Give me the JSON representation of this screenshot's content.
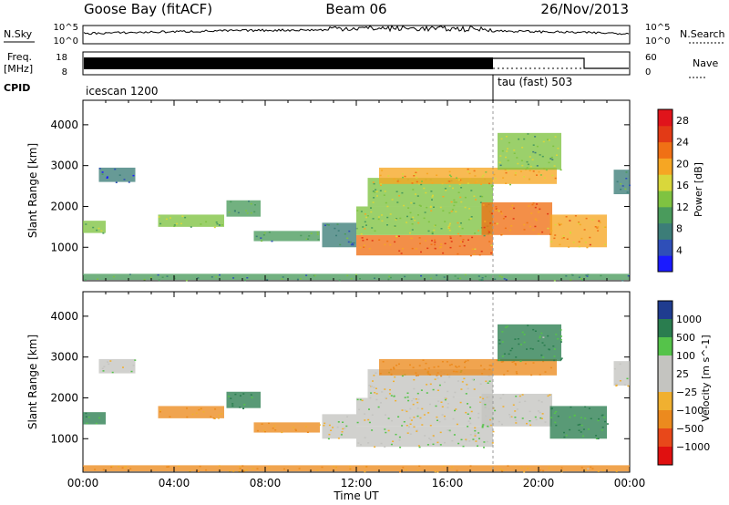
{
  "header": {
    "station": "Goose Bay (fitACF)",
    "beam": "Beam 06",
    "date": "26/Nov/2013"
  },
  "noise_panel": {
    "left_label": "N.Sky",
    "right_label": "N.Search",
    "left_ticks": [
      "10^5",
      "10^0"
    ],
    "right_ticks": [
      "10^5",
      "10^0"
    ]
  },
  "freq_panel": {
    "left_label_line1": "Freq.",
    "left_label_line2": "[MHz]",
    "right_label": "Nave",
    "left_ticks": [
      "18",
      "8"
    ],
    "right_ticks": [
      "60",
      "0"
    ]
  },
  "cpid_panel": {
    "label": "CPID",
    "segments": [
      {
        "name": "icescan 1200",
        "start_hour": 0,
        "end_hour": 18
      },
      {
        "name": "tau (fast) 503",
        "start_hour": 18,
        "end_hour": 24
      }
    ]
  },
  "x_axis": {
    "label": "Time UT",
    "ticks": [
      "00:00",
      "04:00",
      "08:00",
      "12:00",
      "16:00",
      "20:00",
      "00:00"
    ],
    "range_hours": [
      0,
      24
    ]
  },
  "chart_data": [
    {
      "type": "heatmap",
      "parameter": "power",
      "ylabel": "Slant Range [km]",
      "yticks": [
        1000,
        2000,
        3000,
        4000
      ],
      "ylim": [
        180,
        4600
      ],
      "colorbar": {
        "label": "Power [dB]",
        "ticks": [
          "4",
          "8",
          "12",
          "16",
          "20",
          "24",
          "28"
        ],
        "range": [
          0,
          30
        ]
      },
      "regions": [
        {
          "t0": 0.0,
          "t1": 24.0,
          "r0": 200,
          "r1": 350,
          "value": 10
        },
        {
          "t0": 0.7,
          "t1": 2.3,
          "r0": 2600,
          "r1": 2950,
          "value": 6
        },
        {
          "t0": 0.0,
          "t1": 1.0,
          "r0": 1350,
          "r1": 1650,
          "value": 12
        },
        {
          "t0": 3.3,
          "t1": 6.2,
          "r0": 1500,
          "r1": 1800,
          "value": 12
        },
        {
          "t0": 6.3,
          "t1": 7.8,
          "r0": 1750,
          "r1": 2150,
          "value": 10
        },
        {
          "t0": 7.5,
          "t1": 10.4,
          "r0": 1150,
          "r1": 1400,
          "value": 10
        },
        {
          "t0": 10.5,
          "t1": 12.0,
          "r0": 1000,
          "r1": 1600,
          "value": 8
        },
        {
          "t0": 12.0,
          "t1": 18.0,
          "r0": 800,
          "r1": 1300,
          "value": 22
        },
        {
          "t0": 12.0,
          "t1": 18.0,
          "r0": 1300,
          "r1": 2000,
          "value": 14
        },
        {
          "t0": 12.5,
          "t1": 18.0,
          "r0": 2000,
          "r1": 2700,
          "value": 14
        },
        {
          "t0": 13.0,
          "t1": 20.8,
          "r0": 2550,
          "r1": 2950,
          "value": 18
        },
        {
          "t0": 17.5,
          "t1": 20.6,
          "r0": 1300,
          "r1": 2100,
          "value": 22
        },
        {
          "t0": 20.5,
          "t1": 23.0,
          "r0": 1000,
          "r1": 1800,
          "value": 20
        },
        {
          "t0": 18.2,
          "t1": 21.0,
          "r0": 2900,
          "r1": 3800,
          "value": 12
        },
        {
          "t0": 23.3,
          "t1": 24.0,
          "r0": 2300,
          "r1": 2900,
          "value": 8
        }
      ]
    },
    {
      "type": "heatmap",
      "parameter": "velocity",
      "ylabel": "Slant Range [km]",
      "yticks": [
        1000,
        2000,
        3000,
        4000
      ],
      "ylim": [
        180,
        4600
      ],
      "colorbar": {
        "label": "Velocity [m s^-1]",
        "ticks": [
          "1000",
          "500",
          "100",
          "25",
          "−25",
          "−100",
          "−500",
          "−1000"
        ]
      },
      "regions": [
        {
          "t0": 0.0,
          "t1": 24.0,
          "r0": 200,
          "r1": 350,
          "value": -100
        },
        {
          "t0": 0.7,
          "t1": 2.3,
          "r0": 2600,
          "r1": 2950,
          "value": 0
        },
        {
          "t0": 0.0,
          "t1": 1.0,
          "r0": 1350,
          "r1": 1650,
          "value": 100
        },
        {
          "t0": 3.3,
          "t1": 6.2,
          "r0": 1500,
          "r1": 1800,
          "value": -100
        },
        {
          "t0": 6.3,
          "t1": 7.8,
          "r0": 1750,
          "r1": 2150,
          "value": 100
        },
        {
          "t0": 7.5,
          "t1": 10.4,
          "r0": 1150,
          "r1": 1400,
          "value": -100
        },
        {
          "t0": 10.5,
          "t1": 12.0,
          "r0": 1000,
          "r1": 1600,
          "value": 0
        },
        {
          "t0": 12.0,
          "t1": 18.0,
          "r0": 800,
          "r1": 1300,
          "value": 0
        },
        {
          "t0": 12.0,
          "t1": 18.0,
          "r0": 1300,
          "r1": 2000,
          "value": 0
        },
        {
          "t0": 12.5,
          "t1": 18.0,
          "r0": 2000,
          "r1": 2700,
          "value": 0
        },
        {
          "t0": 13.0,
          "t1": 20.8,
          "r0": 2550,
          "r1": 2950,
          "value": -200
        },
        {
          "t0": 17.5,
          "t1": 20.6,
          "r0": 1300,
          "r1": 2100,
          "value": 0
        },
        {
          "t0": 20.5,
          "t1": 23.0,
          "r0": 1000,
          "r1": 1800,
          "value": 100
        },
        {
          "t0": 18.2,
          "t1": 21.0,
          "r0": 2900,
          "r1": 3800,
          "value": 100
        },
        {
          "t0": 23.3,
          "t1": 24.0,
          "r0": 2300,
          "r1": 2900,
          "value": 0
        }
      ]
    }
  ]
}
